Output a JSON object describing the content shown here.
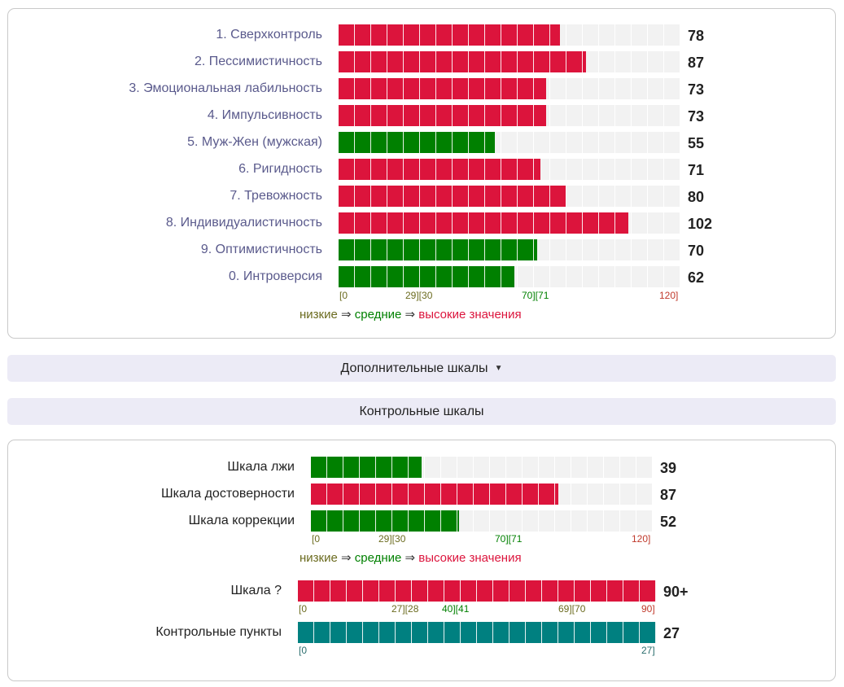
{
  "main_scales": {
    "items": [
      {
        "label": "1. Сверхконтроль",
        "value": 78,
        "display": "78",
        "color": "red"
      },
      {
        "label": "2. Пессимистичность",
        "value": 87,
        "display": "87",
        "color": "red"
      },
      {
        "label": "3. Эмоциональная лабильность",
        "value": 73,
        "display": "73",
        "color": "red"
      },
      {
        "label": "4. Импульсивность",
        "value": 73,
        "display": "73",
        "color": "red"
      },
      {
        "label": "5. Муж-Жен (мужская)",
        "value": 55,
        "display": "55",
        "color": "green"
      },
      {
        "label": "6. Ригидность",
        "value": 71,
        "display": "71",
        "color": "red"
      },
      {
        "label": "7. Тревожность",
        "value": 80,
        "display": "80",
        "color": "red"
      },
      {
        "label": "8. Индивидуалистичность",
        "value": 102,
        "display": "102",
        "color": "red"
      },
      {
        "label": "9. Оптимистичность",
        "value": 70,
        "display": "70",
        "color": "green"
      },
      {
        "label": "0. Интроверсия",
        "value": 62,
        "display": "62",
        "color": "green"
      }
    ],
    "max": 120,
    "ticks": {
      "t0": "[0",
      "t1": "29][30",
      "t2": "70][71",
      "t3": "120]"
    },
    "legend": {
      "low": "низкие",
      "arrow": " ⇒ ",
      "mid": "средние",
      "high": "высокие значения"
    }
  },
  "sections": {
    "extra": {
      "label": "Дополнительные шкалы",
      "caret": "▼"
    },
    "control": {
      "label": "Контрольные шкалы"
    }
  },
  "control_scales": {
    "items": [
      {
        "label": "Шкала лжи",
        "value": 39,
        "display": "39",
        "color": "green"
      },
      {
        "label": "Шкала достоверности",
        "value": 87,
        "display": "87",
        "color": "red"
      },
      {
        "label": "Шкала коррекции",
        "value": 52,
        "display": "52",
        "color": "green"
      }
    ],
    "max": 120,
    "ticks": {
      "t0": "[0",
      "t1": "29][30",
      "t2": "70][71",
      "t3": "120]"
    },
    "legend": {
      "low": "низкие",
      "arrow": " ⇒ ",
      "mid": "средние",
      "high": "высокие значения"
    }
  },
  "question_scale": {
    "label": "Шкала ?",
    "value": 90,
    "max": 90,
    "display": "90+",
    "ticks": {
      "t0": "[0",
      "t1": "27][28",
      "t2": "40][41",
      "t3": "69][70",
      "t4": "90]"
    }
  },
  "control_points": {
    "label": "Контрольные пункты",
    "value": 27,
    "max": 27,
    "display": "27",
    "ticks": {
      "t0": "[0",
      "t1": "27]"
    }
  },
  "colors": {
    "red": "#dc143c",
    "green": "#008000",
    "teal": "#008080"
  }
}
